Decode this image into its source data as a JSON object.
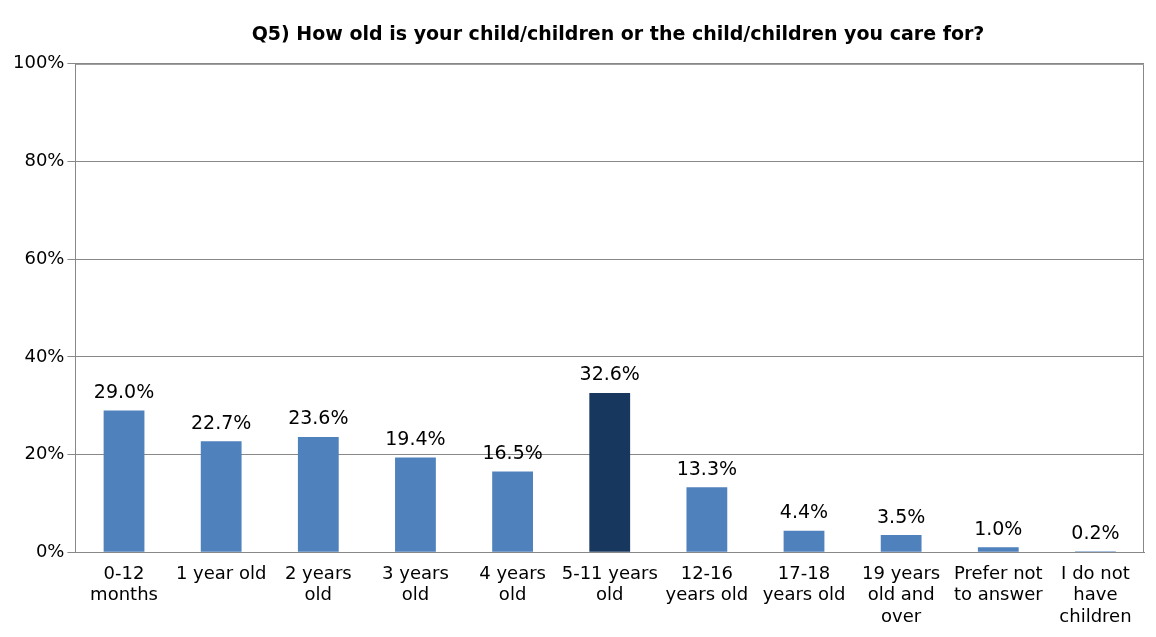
{
  "chart_data": {
    "type": "bar",
    "title": "Q5) How old is your child/children or the child/children you care for?",
    "categories": [
      "0-12 months",
      "1 year old",
      "2 years old",
      "3 years old",
      "4 years old",
      "5-11 years old",
      "12-16 years old",
      "17-18 years old",
      "19 years old and over",
      "Prefer not to answer",
      "I do not have children"
    ],
    "values": [
      29.0,
      22.7,
      23.6,
      19.4,
      16.5,
      32.6,
      13.3,
      4.4,
      3.5,
      1.0,
      0.2
    ],
    "colors": [
      "#4f81bd",
      "#4f81bd",
      "#4f81bd",
      "#4f81bd",
      "#4f81bd",
      "#17375e",
      "#4f81bd",
      "#4f81bd",
      "#4f81bd",
      "#4f81bd",
      "#4f81bd"
    ],
    "value_labels": [
      "29.0%",
      "22.7%",
      "23.6%",
      "19.4%",
      "16.5%",
      "32.6%",
      "13.3%",
      "4.4%",
      "3.5%",
      "1.0%",
      "0.2%"
    ],
    "ylim": [
      0,
      100
    ],
    "yticks": [
      {
        "value": 0,
        "label": "0%"
      },
      {
        "value": 20,
        "label": "20%"
      },
      {
        "value": 40,
        "label": "40%"
      },
      {
        "value": 60,
        "label": "60%"
      },
      {
        "value": 80,
        "label": "80%"
      },
      {
        "value": 100,
        "label": "100%"
      }
    ],
    "grid": "y",
    "legend": false
  }
}
